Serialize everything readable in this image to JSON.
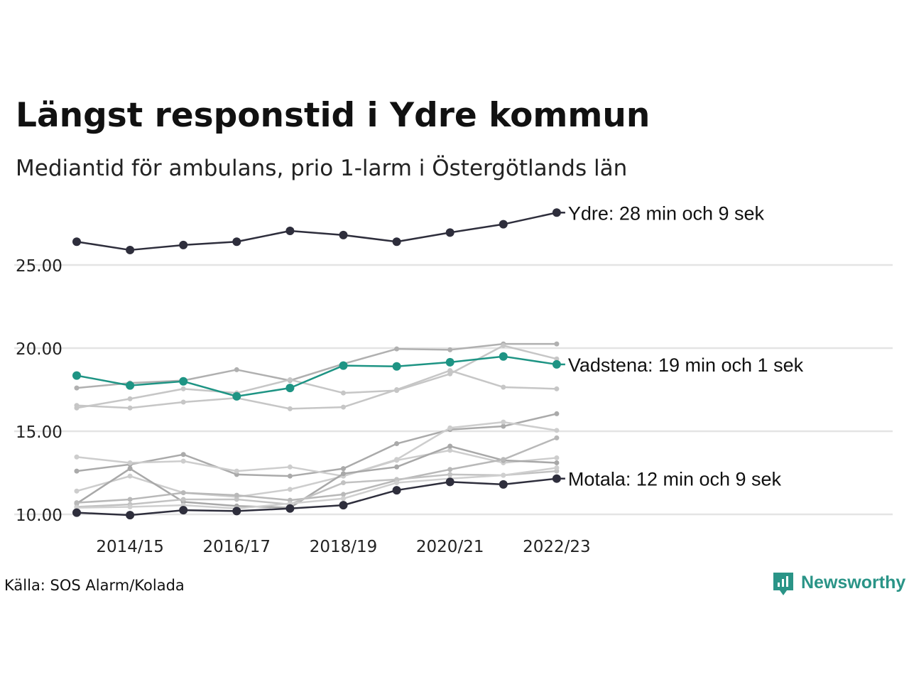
{
  "title": "Längst responstid i Ydre kommun",
  "subtitle": "Mediantid för ambulans, prio 1-larm i Östergötlands län",
  "source": "Källa: SOS Alarm/Kolada",
  "brand": {
    "name": "Newsworthy",
    "color": "#2a9487"
  },
  "colors": {
    "dark": "#2e2e3c",
    "teal": "#1e9484",
    "grid": "#e4e4e4"
  },
  "chart_data": {
    "type": "line",
    "x": [
      "2013/14",
      "2014/15",
      "2015/16",
      "2016/17",
      "2017/18",
      "2018/19",
      "2019/20",
      "2020/21",
      "2021/22",
      "2022/23"
    ],
    "x_tick_labels": [
      "2014/15",
      "2016/17",
      "2018/19",
      "2020/21",
      "2022/23"
    ],
    "y_ticks": [
      "10.00",
      "15.00",
      "20.00",
      "25.00"
    ],
    "ylim": [
      9.5,
      28.8
    ],
    "grid": true,
    "highlighted": [
      {
        "name": "Ydre",
        "label": "Ydre: 28 min och 9 sek",
        "color": "#2e2e3c",
        "values": [
          26.4,
          25.9,
          26.2,
          26.4,
          27.05,
          26.8,
          26.4,
          26.95,
          27.45,
          28.15
        ]
      },
      {
        "name": "Vadstena",
        "label": "Vadstena: 19 min och 1 sek",
        "color": "#1e9484",
        "values": [
          18.35,
          17.75,
          18.0,
          17.1,
          17.6,
          18.95,
          18.9,
          19.15,
          19.5,
          19.02
        ]
      },
      {
        "name": "Motala",
        "label": "Motala: 12 min och 9 sek",
        "color": "#2e2e3c",
        "values": [
          10.1,
          9.95,
          10.25,
          10.2,
          10.35,
          10.55,
          11.45,
          11.95,
          11.8,
          12.15
        ]
      }
    ],
    "background_series": [
      {
        "color": "#b0b0b0",
        "values": [
          17.6,
          17.9,
          18.05,
          18.7,
          18.05,
          19.05,
          19.95,
          19.9,
          20.25,
          20.25
        ]
      },
      {
        "color": "#c6c6c6",
        "values": [
          16.4,
          16.95,
          17.55,
          17.3,
          18.1,
          17.3,
          17.45,
          18.45,
          20.15,
          19.35
        ]
      },
      {
        "color": "#c6c6c6",
        "values": [
          16.55,
          16.4,
          16.75,
          17.0,
          16.35,
          16.45,
          17.5,
          18.65,
          17.65,
          17.55
        ]
      },
      {
        "color": "#aaaaaa",
        "values": [
          12.6,
          13.0,
          13.6,
          12.4,
          12.3,
          12.75,
          14.25,
          15.1,
          15.3,
          16.05
        ]
      },
      {
        "color": "#cdcdcd",
        "values": [
          13.45,
          13.1,
          13.2,
          12.6,
          12.85,
          12.3,
          13.3,
          15.2,
          15.55,
          15.05
        ]
      },
      {
        "color": "#cdcdcd",
        "values": [
          11.4,
          12.3,
          11.3,
          11.05,
          11.5,
          12.3,
          13.25,
          13.85,
          13.1,
          13.4
        ]
      },
      {
        "color": "#a8a8a8",
        "values": [
          10.65,
          12.75,
          10.75,
          10.5,
          10.4,
          12.45,
          12.85,
          14.1,
          13.25,
          13.1
        ]
      },
      {
        "color": "#b8b8b8",
        "values": [
          10.7,
          10.9,
          11.3,
          11.15,
          10.85,
          11.2,
          12.05,
          12.7,
          13.3,
          14.6
        ]
      },
      {
        "color": "#c2c2c2",
        "values": [
          10.45,
          10.6,
          10.9,
          10.9,
          10.6,
          11.9,
          12.1,
          12.4,
          12.35,
          12.6
        ]
      },
      {
        "color": "#cfcfcf",
        "values": [
          10.4,
          10.45,
          10.55,
          10.35,
          10.65,
          10.95,
          11.9,
          12.15,
          12.35,
          12.8
        ]
      }
    ]
  }
}
